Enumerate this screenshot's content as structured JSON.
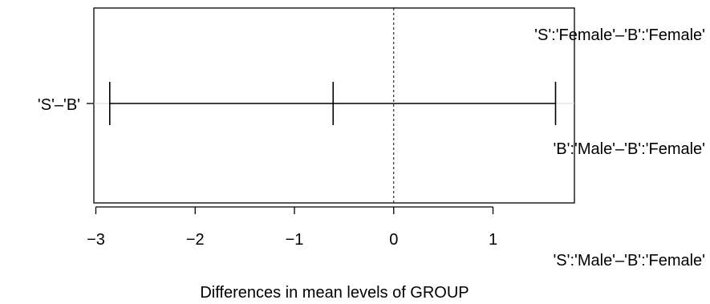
{
  "chart_data": {
    "type": "interval",
    "title": "",
    "xlabel": "Differences in mean levels of GROUP",
    "ylabel": "",
    "xlim": [
      -3.02,
      1.82
    ],
    "x_ticks": [
      -3,
      -2,
      -1,
      0,
      1
    ],
    "x_tick_labels": [
      "−3",
      "−2",
      "−1",
      "0",
      "1"
    ],
    "reference_line": 0,
    "grid": false,
    "intervals": [
      {
        "label": "'S'–'B'",
        "lower": -2.86,
        "estimate": -0.61,
        "upper": 1.63
      }
    ],
    "annotations": [
      "'S':'Female'–'B':'Female'",
      "'B':'Male'–'B':'Female'",
      "'S':'Male'–'B':'Female'"
    ],
    "colors": {
      "lines": "#000000",
      "guide": "#d9d9d9"
    }
  }
}
